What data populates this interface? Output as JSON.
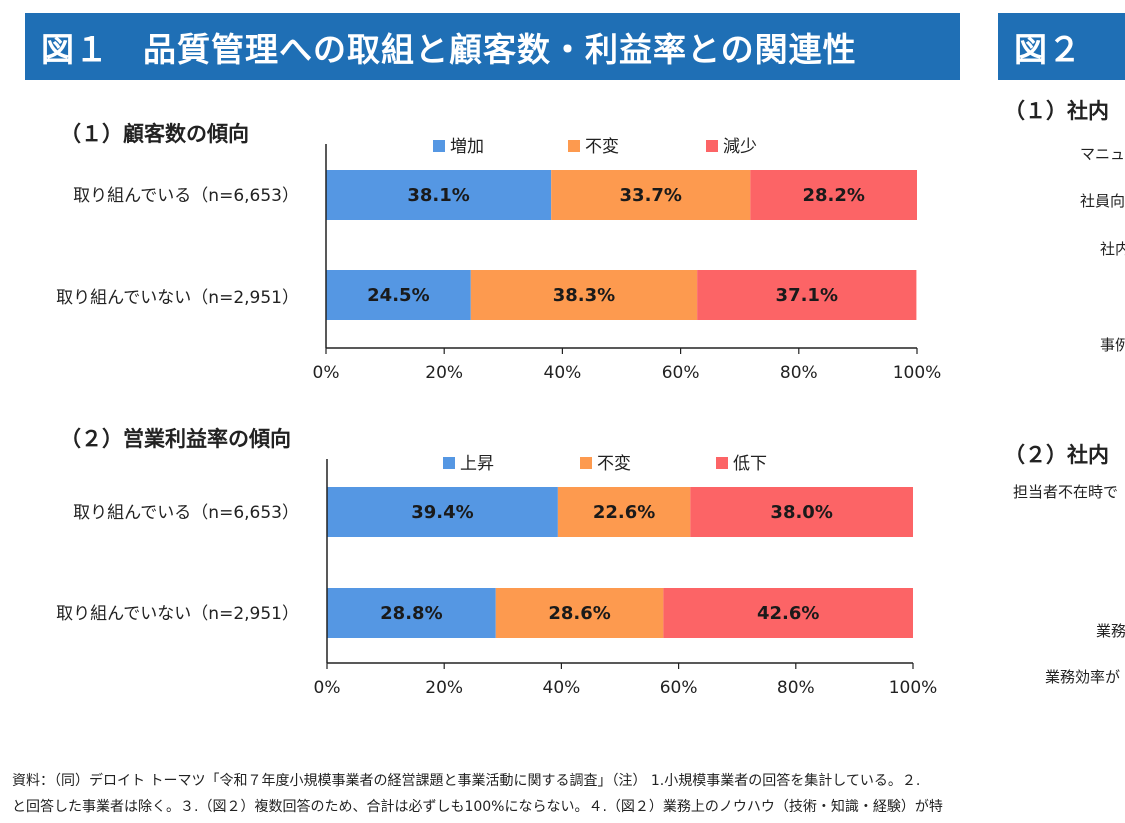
{
  "figure1": {
    "number": "図１",
    "title": "品質管理への取組と顧客数・利益率との関連性"
  },
  "figure2": {
    "number": "図２",
    "sub1": "（１）社内",
    "sub2": "（２）社内",
    "row_labels": [
      "マニュ",
      "社員向",
      "社内",
      "事例",
      "担当者不在時で",
      "業務",
      "業務効率が"
    ]
  },
  "chart_data": [
    {
      "type": "bar",
      "orientation": "horizontal-stacked-100",
      "title": "（１）顧客数の傾向",
      "categories": [
        "取り組んでいる（n=6,653）",
        "取り組んでいない（n=2,951）"
      ],
      "series": [
        {
          "name": "増加",
          "values": [
            38.1,
            24.5
          ],
          "color": "#5597e3"
        },
        {
          "name": "不変",
          "values": [
            33.7,
            38.3
          ],
          "color": "#fd9a4f"
        },
        {
          "name": "減少",
          "values": [
            28.2,
            37.1
          ],
          "color": "#fc6466"
        }
      ],
      "xlim": [
        0,
        100
      ],
      "xticks": [
        "0%",
        "20%",
        "40%",
        "60%",
        "80%",
        "100%"
      ],
      "legend_position": "top",
      "grid": false
    },
    {
      "type": "bar",
      "orientation": "horizontal-stacked-100",
      "title": "（２）営業利益率の傾向",
      "categories": [
        "取り組んでいる（n=6,653）",
        "取り組んでいない（n=2,951）"
      ],
      "series": [
        {
          "name": "上昇",
          "values": [
            39.4,
            28.8
          ],
          "color": "#5597e3"
        },
        {
          "name": "不変",
          "values": [
            22.6,
            28.6
          ],
          "color": "#fd9a4f"
        },
        {
          "name": "低下",
          "values": [
            38.0,
            42.6
          ],
          "color": "#fc6466"
        }
      ],
      "xlim": [
        0,
        100
      ],
      "xticks": [
        "0%",
        "20%",
        "40%",
        "60%",
        "80%",
        "100%"
      ],
      "legend_position": "top",
      "grid": false
    }
  ],
  "footnote": {
    "line1": "資料：（同）デロイト トーマツ「令和７年度小規模事業者の経営課題と事業活動に関する調査」（注） 1.小規模事業者の回答を集計している。２.",
    "line2": "と回答した事業者は除く。３.（図２）複数回答のため、合計は必ずしも100%にならない。４.（図２）業務上のノウハウ（技術・知識・経験）が特"
  }
}
